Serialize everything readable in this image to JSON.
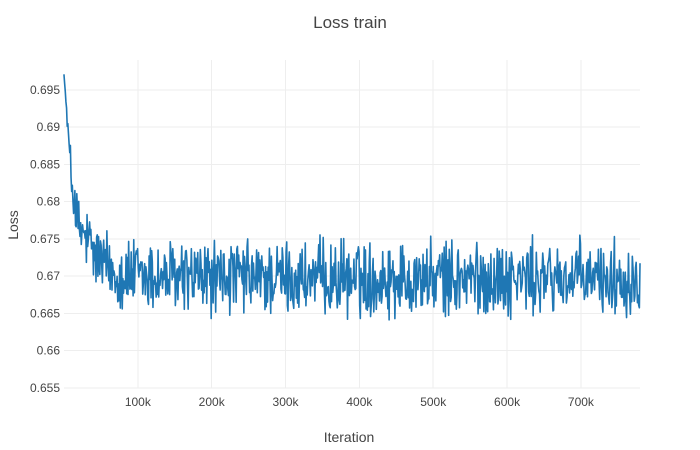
{
  "chart_data": {
    "type": "line",
    "title": "Loss train",
    "xlabel": "Iteration",
    "ylabel": "Loss",
    "xlim": [
      0,
      780000
    ],
    "ylim": [
      0.655,
      0.699
    ],
    "x_ticks": [
      100000,
      200000,
      300000,
      400000,
      500000,
      600000,
      700000
    ],
    "x_tick_labels": [
      "100k",
      "200k",
      "300k",
      "400k",
      "500k",
      "600k",
      "700k"
    ],
    "y_ticks": [
      0.655,
      0.66,
      0.665,
      0.67,
      0.675,
      0.68,
      0.685,
      0.69,
      0.695
    ],
    "y_tick_labels": [
      "0.655",
      "0.66",
      "0.665",
      "0.67",
      "0.675",
      "0.68",
      "0.685",
      "0.69",
      "0.695"
    ],
    "grid": true,
    "legend": "none",
    "series": [
      {
        "color": "#1f77b4",
        "x": [
          0,
          10000,
          20000,
          30000,
          40000,
          50000,
          60000,
          70000,
          80000,
          90000,
          100000,
          110000,
          120000,
          130000,
          140000,
          150000,
          160000,
          170000,
          180000,
          190000,
          200000,
          210000,
          220000,
          230000,
          240000,
          250000,
          260000,
          270000,
          280000,
          290000,
          300000,
          310000,
          320000,
          330000,
          340000,
          350000,
          360000,
          370000,
          380000,
          390000,
          400000,
          410000,
          420000,
          430000,
          440000,
          450000,
          460000,
          470000,
          480000,
          490000,
          500000,
          510000,
          520000,
          530000,
          540000,
          550000,
          560000,
          570000,
          580000,
          590000,
          600000,
          610000,
          620000,
          630000,
          640000,
          650000,
          660000,
          670000,
          680000,
          690000,
          700000,
          710000,
          720000,
          730000,
          740000,
          750000,
          760000,
          770000,
          780000
        ],
        "y": [
          0.697,
          0.683,
          0.676,
          0.675,
          0.673,
          0.672,
          0.671,
          0.6705,
          0.6702,
          0.67,
          0.6702,
          0.6698,
          0.67,
          0.6699,
          0.6698,
          0.6697,
          0.6699,
          0.6698,
          0.6697,
          0.6698,
          0.6697,
          0.6696,
          0.6698,
          0.6697,
          0.6697,
          0.6698,
          0.6696,
          0.6697,
          0.6697,
          0.6696,
          0.6698,
          0.6697,
          0.6697,
          0.6696,
          0.6697,
          0.6698,
          0.6696,
          0.6697,
          0.6697,
          0.6696,
          0.6697,
          0.6696,
          0.6697,
          0.6697,
          0.6696,
          0.6697,
          0.6696,
          0.6697,
          0.6697,
          0.6696,
          0.6696,
          0.6697,
          0.6696,
          0.6697,
          0.6697,
          0.6696,
          0.6697,
          0.6696,
          0.6697,
          0.6696,
          0.6697,
          0.6696,
          0.6697,
          0.6698,
          0.6696,
          0.6697,
          0.6696,
          0.6697,
          0.6697,
          0.6696,
          0.6697,
          0.6696,
          0.6697,
          0.6697,
          0.6696,
          0.6697,
          0.6696,
          0.6697,
          0.6696
        ],
        "noise_amplitude": [
          0.0,
          0.003,
          0.004,
          0.004,
          0.0045,
          0.0045,
          0.0045,
          0.0045,
          0.0045,
          0.0045,
          0.0045,
          0.0045,
          0.0045,
          0.0045,
          0.0045,
          0.0045,
          0.0045,
          0.0045,
          0.0045,
          0.0045,
          0.0045,
          0.0045,
          0.0045,
          0.0045,
          0.0045,
          0.0045,
          0.0045,
          0.0045,
          0.0045,
          0.0045,
          0.0045,
          0.0045,
          0.0045,
          0.0045,
          0.0045,
          0.0045,
          0.0045,
          0.0045,
          0.0045,
          0.0045,
          0.0045,
          0.0045,
          0.0045,
          0.0045,
          0.0045,
          0.0045,
          0.0045,
          0.0045,
          0.0045,
          0.0045,
          0.0045,
          0.0045,
          0.0045,
          0.0045,
          0.0045,
          0.0045,
          0.0045,
          0.0045,
          0.0045,
          0.0045,
          0.0045,
          0.0045,
          0.0045,
          0.0045,
          0.0045,
          0.0045,
          0.0045,
          0.0045,
          0.0045,
          0.0045,
          0.0045,
          0.0045,
          0.0045,
          0.0045,
          0.0045,
          0.0045,
          0.0045,
          0.0045,
          0.0045
        ]
      }
    ]
  }
}
